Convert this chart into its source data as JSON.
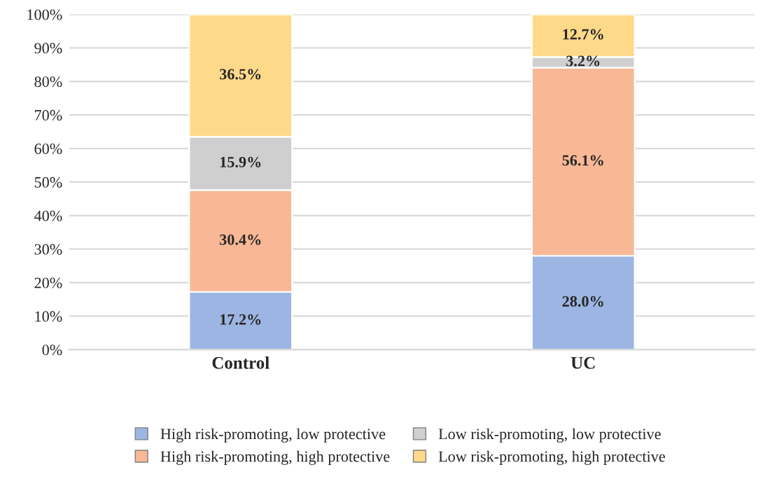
{
  "chart_data": {
    "type": "bar",
    "stacked": true,
    "categories": [
      "Control",
      "UC"
    ],
    "series": [
      {
        "name": "High risk-promoting, low protective",
        "color": "#9db5e3",
        "values": [
          17.2,
          28.0
        ],
        "value_labels": [
          "17.2%",
          "28.0%"
        ]
      },
      {
        "name": "High risk-promoting, high protective",
        "color": "#f8b795",
        "values": [
          30.4,
          56.1
        ],
        "value_labels": [
          "30.4%",
          "56.1%"
        ]
      },
      {
        "name": "Low risk-promoting, low protective",
        "color": "#cfcfcf",
        "values": [
          15.9,
          3.2
        ],
        "value_labels": [
          "15.9%",
          "3.2%"
        ]
      },
      {
        "name": "Low risk-promoting, high protective",
        "color": "#ffd98a",
        "values": [
          36.5,
          12.7
        ],
        "value_labels": [
          "36.5%",
          "12.7%"
        ]
      }
    ],
    "ylim": [
      0,
      100
    ],
    "yticks": [
      {
        "value": 0,
        "label": "0%"
      },
      {
        "value": 10,
        "label": "10%"
      },
      {
        "value": 20,
        "label": "20%"
      },
      {
        "value": 30,
        "label": "30%"
      },
      {
        "value": 40,
        "label": "40%"
      },
      {
        "value": 50,
        "label": "50%"
      },
      {
        "value": 60,
        "label": "60%"
      },
      {
        "value": 70,
        "label": "70%"
      },
      {
        "value": 80,
        "label": "80%"
      },
      {
        "value": 90,
        "label": "90%"
      },
      {
        "value": 100,
        "label": "100%"
      }
    ],
    "grid": "y",
    "legend": "bottom"
  }
}
